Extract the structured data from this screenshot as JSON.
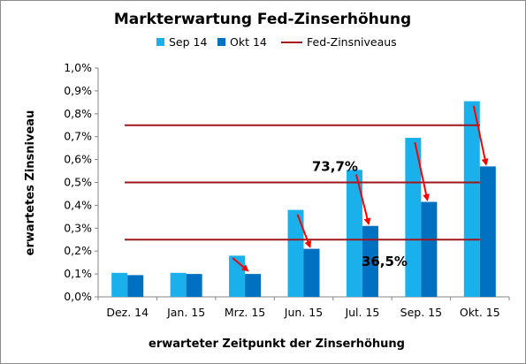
{
  "chart_data": {
    "type": "bar",
    "title": "Markterwartung Fed-Zinserhöhung",
    "xlabel": "erwarteter Zeitpunkt der Zinserhöhung",
    "ylabel": "erwartetes Zinsniveau",
    "ylim": [
      0,
      1.0
    ],
    "y_ticks": [
      "0,0%",
      "0,1%",
      "0,2%",
      "0,3%",
      "0,4%",
      "0,5%",
      "0,6%",
      "0,7%",
      "0,8%",
      "0,9%",
      "1,0%"
    ],
    "grid": false,
    "legend_position": "top",
    "categories": [
      "Dez. 14",
      "Jan. 15",
      "Mrz. 15",
      "Jun. 15",
      "Jul. 15",
      "Sep. 15",
      "Okt. 15"
    ],
    "series": [
      {
        "name": "Sep 14",
        "color": "#1ab0ec",
        "values": [
          0.105,
          0.105,
          0.18,
          0.38,
          0.555,
          0.695,
          0.855
        ]
      },
      {
        "name": "Okt 14",
        "color": "#0070c0",
        "values": [
          0.095,
          0.1,
          0.1,
          0.21,
          0.31,
          0.415,
          0.57
        ]
      }
    ],
    "reference_lines": {
      "name": "Fed-Zinsniveaus",
      "color": "#a0161c",
      "values": [
        0.25,
        0.5,
        0.75
      ]
    },
    "arrows": {
      "color": "#ff0000",
      "categories": [
        "Mrz. 15",
        "Jun. 15",
        "Jul. 15",
        "Sep. 15",
        "Okt. 15"
      ]
    },
    "annotations": [
      "73,7%",
      "36,5%"
    ]
  }
}
